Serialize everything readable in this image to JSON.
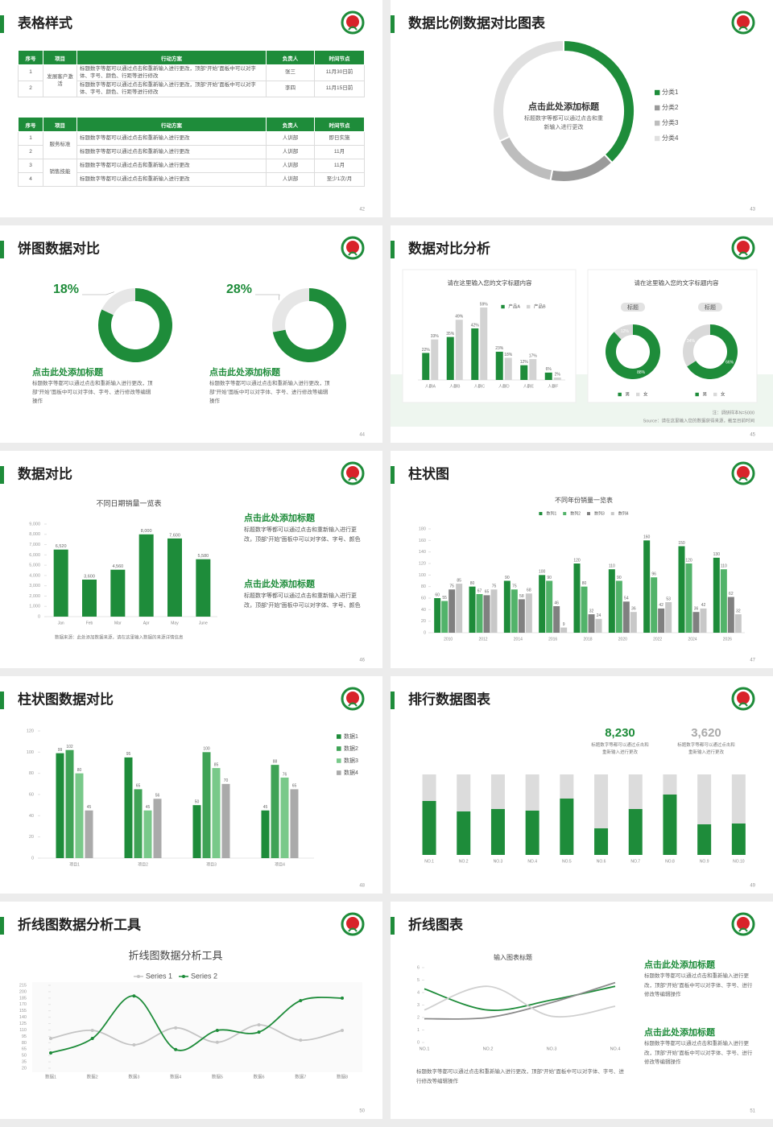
{
  "slides": [
    {
      "title": "表格样式",
      "page": 42,
      "tables": [
        {
          "header": [
            "序号",
            "项目",
            "行动方案",
            "负责人",
            "时间节点"
          ],
          "groups": [
            {
              "item": "发展客户激活",
              "rows": [
                [
                  "1",
                  "标题数字等都可以通过点击和重新输入进行更改，顶部“开始”面板中可以对字体、字号、颜色、行距等进行修改",
                  "张三",
                  "11月30日前"
                ],
                [
                  "2",
                  "标题数字等都可以通过点击和重新输入进行更改，顶部“开始”面板中可以对字体、字号、颜色、行距等进行修改",
                  "李四",
                  "11月15日前"
                ]
              ]
            }
          ]
        },
        {
          "header": [
            "序号",
            "项目",
            "行动方案",
            "负责人",
            "时间节点"
          ],
          "groups": [
            {
              "item": "服务标准",
              "rows": [
                [
                  "1",
                  "标题数字等都可以通过点击和重新输入进行更改",
                  "人训部",
                  "即日实施"
                ],
                [
                  "2",
                  "标题数字等都可以通过点击和重新输入进行更改",
                  "人训部",
                  "11月"
                ]
              ]
            },
            {
              "item": "销售技能",
              "rows": [
                [
                  "3",
                  "标题数字等都可以通过点击和重新输入进行更改",
                  "人训部",
                  "11月"
                ],
                [
                  "4",
                  "标题数字等都可以通过点击和重新输入进行更改",
                  "人训部",
                  "至少1次/月"
                ]
              ]
            }
          ]
        }
      ]
    },
    {
      "title": "数据比例数据对比图表",
      "page": 43,
      "center_title": "点击此处添加标题",
      "center_text": "标题数字等都可以通过点击和重新输入进行更改"
    },
    {
      "title": "饼图数据对比",
      "page": 44,
      "blocks": [
        {
          "heading": "点击此处添加标题",
          "text": "标题数字等都可以通过点击和重新输入进行更改，顶部“开始”面板中可以对字体、字号、进行修改等编辑操作"
        },
        {
          "heading": "点击此处添加标题",
          "text": "标题数字等都可以通过点击和重新输入进行更改，顶部“开始”面板中可以对字体、字号、进行修改等编辑操作"
        }
      ]
    },
    {
      "title": "数据对比分析",
      "page": 45,
      "labels": [
        "标题",
        "标题"
      ],
      "note": "注：调研样本N=5000",
      "source": "Source：请在这里输入您的数据获得来源，截至目前时间"
    },
    {
      "title": "数据对比",
      "page": 46,
      "source": "数据来源：此处添加数据来源，请在这里输入数据的来源详情信息",
      "blocks": [
        {
          "heading": "点击此处添加标题",
          "text": "标题数字等都可以通过点击和重新输入进行更改，顶部“开始”面板中可以对字体、字号、颜色"
        },
        {
          "heading": "点击此处添加标题",
          "text": "标题数字等都可以通过点击和重新输入进行更改，顶部“开始”面板中可以对字体、字号、颜色"
        }
      ]
    },
    {
      "title": "柱状图",
      "page": 47
    },
    {
      "title": "柱状图数据对比",
      "page": 48
    },
    {
      "title": "排行数据图表",
      "page": 49,
      "stats": [
        {
          "value": "8,230",
          "text": "标题数字等都可以通过点击和重新输入进行更改"
        },
        {
          "value": "3,620",
          "text": "标题数字等都可以通过点击和重新输入进行更改"
        }
      ]
    },
    {
      "title": "折线图数据分析工具",
      "page": 50
    },
    {
      "title": "折线图表",
      "page": 51,
      "text": "标题数字等都可以通过点击和重新输入进行更改，顶部“开始”面板中可以对字体、字号、进行修改等编辑操作",
      "blocks": [
        {
          "heading": "点击此处添加标题",
          "text": "标题数字等都可以通过点击和重新输入进行更改，顶部“开始”面板中可以对字体、字号、进行修改等编辑操作"
        },
        {
          "heading": "点击此处添加标题",
          "text": "标题数字等都可以通过点击和重新输入进行更改，顶部“开始”面板中可以对字体、字号、进行修改等编辑操作"
        }
      ]
    }
  ],
  "chart_data": [
    {
      "type": "donut",
      "categories": [
        "分类1",
        "分类2",
        "分类3",
        "分类4"
      ],
      "values": [
        38,
        15,
        15,
        32
      ],
      "colors": [
        "#1e8c3a",
        "#9a9a9a",
        "#bdbdbd",
        "#e0e0e0"
      ],
      "legend": "right"
    },
    {
      "type": "donut",
      "values": [
        82,
        18
      ],
      "value_labels": [
        null,
        "18%"
      ],
      "colors": [
        "#1e8c3a",
        "#e6e6e6"
      ]
    },
    {
      "type": "donut",
      "values": [
        72,
        28
      ],
      "value_labels": [
        null,
        "28%"
      ],
      "colors": [
        "#1e8c3a",
        "#e6e6e6"
      ]
    },
    {
      "type": "bar",
      "title": "请在这里输入您的文字标题内容",
      "categories": [
        "人群A",
        "人群B",
        "人群C",
        "人群D",
        "人群E",
        "人群F"
      ],
      "series": [
        {
          "name": "产品A",
          "color": "#1e8c3a",
          "values": [
            22,
            35,
            42,
            23,
            12,
            6
          ],
          "value_labels": [
            "22%",
            "35%",
            "42%",
            "23%",
            "12%",
            "6%"
          ]
        },
        {
          "name": "产品B",
          "color": "#d3d3d3",
          "values": [
            33,
            49,
            59,
            18,
            17,
            2
          ],
          "value_labels": [
            "33%",
            "49%",
            "59%",
            "18%",
            "17%",
            "2%"
          ]
        }
      ],
      "legend": "top",
      "data_labels": true
    },
    {
      "type": "donut",
      "title": "请在这里输入您的文字标题内容",
      "categories": [
        "男",
        "女"
      ],
      "values": [
        88,
        12
      ],
      "value_labels": [
        "88%",
        "12%"
      ],
      "colors": [
        "#1e8c3a",
        "#d9d9d9"
      ],
      "legend": "bottom"
    },
    {
      "type": "donut",
      "categories": [
        "男",
        "女"
      ],
      "values": [
        66,
        34
      ],
      "value_labels": [
        "66%",
        "34%"
      ],
      "colors": [
        "#1e8c3a",
        "#d9d9d9"
      ],
      "legend": "bottom"
    },
    {
      "type": "bar",
      "title": "不同日期销量一览表",
      "categories": [
        "Jan",
        "Feb",
        "Mar",
        "Apr",
        "May",
        "June"
      ],
      "values": [
        6520,
        3600,
        4560,
        8000,
        7600,
        5580
      ],
      "value_labels": [
        "6,520",
        "3,600",
        "4,560",
        "8,000",
        "7,600",
        "5,580"
      ],
      "color": "#1e8c3a",
      "ylim": [
        0,
        9000
      ],
      "yticks": [
        0,
        {
          "value": 1000,
          "label": "1,000"
        },
        {
          "value": 2000,
          "label": "2,000"
        },
        {
          "value": 3000,
          "label": "3,000"
        },
        {
          "value": 4000,
          "label": "4,000"
        },
        {
          "value": 5000,
          "label": "5,000"
        },
        {
          "value": 6000,
          "label": "6,000"
        },
        {
          "value": 7000,
          "label": "7,000"
        },
        {
          "value": 8000,
          "label": "8,000"
        },
        {
          "value": 9000,
          "label": "9,000"
        }
      ],
      "data_labels": true
    },
    {
      "type": "bar",
      "title": "不同年份销量一览表",
      "categories": [
        "2010",
        "2012",
        "2014",
        "2016",
        "2018",
        "2020",
        "2022",
        "2024",
        "2026"
      ],
      "series": [
        {
          "name": "数列1",
          "color": "#1e8c3a",
          "values": [
            60,
            80,
            90,
            100,
            120,
            110,
            160,
            150,
            130
          ]
        },
        {
          "name": "数列2",
          "color": "#52b36a",
          "values": [
            55,
            67,
            75,
            90,
            80,
            90,
            96,
            120,
            110
          ]
        },
        {
          "name": "数列3",
          "color": "#808080",
          "values": [
            75,
            65,
            58,
            46,
            32,
            54,
            42,
            36,
            62
          ]
        },
        {
          "name": "数列4",
          "color": "#c8c8c8",
          "values": [
            85,
            75,
            68,
            9,
            24,
            36,
            53,
            42,
            32
          ]
        }
      ],
      "ylim": [
        0,
        180
      ],
      "yticks": [
        0,
        20,
        40,
        60,
        80,
        100,
        120,
        140,
        160,
        180
      ],
      "legend": "top",
      "data_labels": true
    },
    {
      "type": "bar",
      "categories": [
        "项目1",
        "项目2",
        "项目3",
        "项目4"
      ],
      "series": [
        {
          "name": "数据1",
          "color": "#1e8c3a",
          "values": [
            99,
            95,
            50,
            45
          ]
        },
        {
          "name": "数据2",
          "color": "#3fa356",
          "values": [
            102,
            65,
            100,
            88
          ]
        },
        {
          "name": "数据3",
          "color": "#79c98a",
          "values": [
            80,
            45,
            85,
            76
          ]
        },
        {
          "name": "数据4",
          "color": "#aaaaaa",
          "values": [
            45,
            56,
            70,
            65
          ]
        }
      ],
      "ylim": [
        0,
        120
      ],
      "yticks": [
        0,
        20,
        40,
        60,
        80,
        100,
        120
      ],
      "legend": "right",
      "data_labels": true
    },
    {
      "type": "bar",
      "stacked": true,
      "categories": [
        "NO.1",
        "NO.2",
        "NO.3",
        "NO.4",
        "NO.5",
        "NO.6",
        "NO.7",
        "NO.8",
        "NO.9",
        "NO.10"
      ],
      "series": [
        {
          "color": "#1e8c3a",
          "values": [
            67,
            54,
            57,
            55,
            70,
            33,
            57,
            75,
            38,
            39
          ]
        },
        {
          "color": "#dcdcdc",
          "values": [
            33,
            46,
            43,
            45,
            30,
            67,
            43,
            25,
            62,
            61
          ]
        }
      ]
    },
    {
      "type": "line",
      "title": "折线图数据分析工具",
      "categories": [
        "数据1",
        "数据2",
        "数据3",
        "数据4",
        "数据5",
        "数据6",
        "数据7",
        "数据8"
      ],
      "series": [
        {
          "name": "Series 1",
          "color": "#c4c4c4",
          "values": [
            90,
            109,
            75,
            115,
            81,
            122,
            86,
            109
          ]
        },
        {
          "name": "Series 2",
          "color": "#1e8c3a",
          "values": [
            56,
            90,
            190,
            64,
            109,
            105,
            179,
            185
          ]
        }
      ],
      "ylim": [
        20,
        215
      ],
      "yticks": [
        20,
        35,
        50,
        65,
        80,
        95,
        110,
        125,
        140,
        155,
        170,
        185,
        200,
        215
      ],
      "legend": "top",
      "smooth": true
    },
    {
      "type": "line",
      "title": "输入图表标题",
      "categories": [
        "NO.1",
        "NO.2",
        "NO.3",
        "NO.4"
      ],
      "series": [
        {
          "color": "#1e8c3a",
          "values": [
            4.3,
            2.6,
            3.4,
            4.5
          ]
        },
        {
          "color": "#8c8c8c",
          "values": [
            1.9,
            2.0,
            3.2,
            4.8
          ]
        },
        {
          "color": "#d0d0d0",
          "values": [
            2.6,
            4.5,
            2.1,
            2.9
          ]
        }
      ],
      "ylim": [
        0,
        6
      ],
      "yticks": [
        0,
        1,
        2,
        3,
        4,
        5,
        6
      ],
      "smooth": true
    }
  ]
}
